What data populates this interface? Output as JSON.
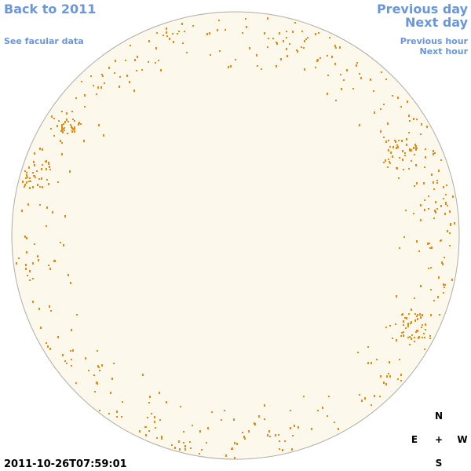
{
  "header": {
    "back": "Back to 2011",
    "facular": "See facular data",
    "previous_day": "Previous day",
    "next_day": "Next day",
    "previous_hour": "Previous hour",
    "next_hour": "Next hour"
  },
  "timestamp": "2011-10-26T07:59:01",
  "compass": {
    "north": "N",
    "east": "E",
    "center": "+",
    "west": "W",
    "south": "S"
  }
}
